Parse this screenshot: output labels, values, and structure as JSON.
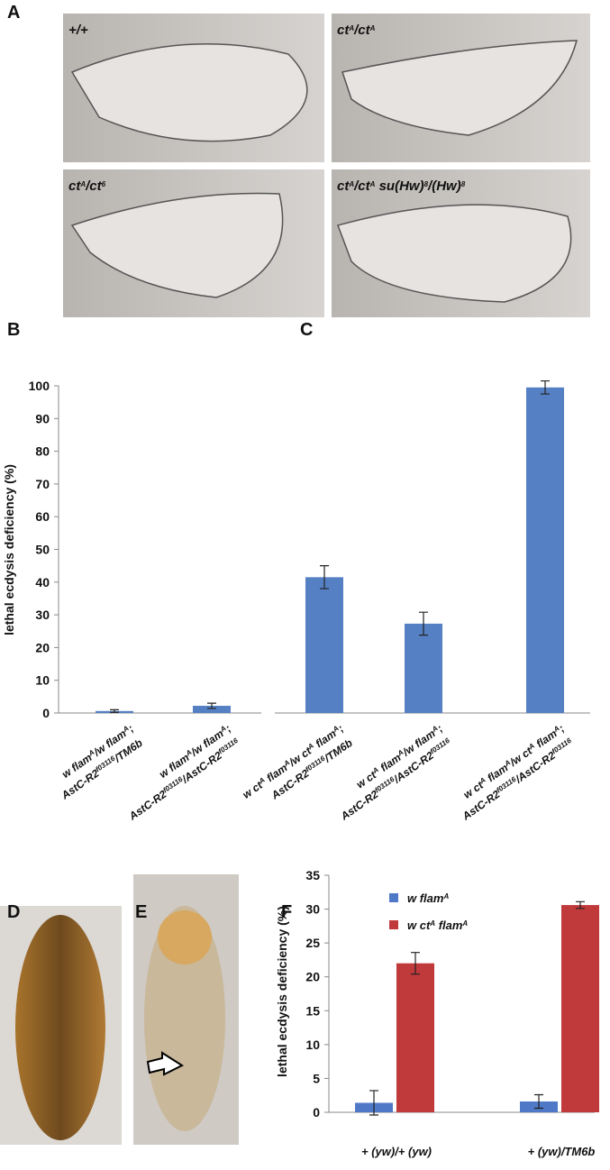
{
  "panel_labels": [
    "A",
    "B",
    "C",
    "D",
    "E",
    "F"
  ],
  "wing_labels": [
    [
      "+/+"
    ],
    [
      "ct",
      {
        "sup": "A"
      },
      "/ct",
      {
        "sup": "A"
      }
    ],
    [
      "ct",
      {
        "sup": "A"
      },
      "/ct",
      {
        "sup": "6"
      }
    ],
    [
      "ct",
      {
        "sup": "A"
      },
      "/ct",
      {
        "sup": "A"
      },
      " su(Hw)",
      {
        "sup": "8"
      },
      "/(Hw)",
      {
        "sup": "8"
      }
    ]
  ],
  "chart_data": [
    {
      "type": "bar",
      "ylabel": "lethal ecdysis deficiency (%)",
      "ylim": [
        0,
        100
      ],
      "yticks": [
        0,
        10,
        20,
        30,
        40,
        50,
        60,
        70,
        80,
        90,
        100
      ],
      "color": "#5580c4",
      "categories": [
        [
          [
            "w flam",
            {
              "sup": "A"
            },
            "/w flam",
            {
              "sup": "A"
            },
            ";"
          ],
          [
            "AstC-R2",
            {
              "sup": "f03116"
            },
            "/TM6b"
          ]
        ],
        [
          [
            "w flam",
            {
              "sup": "A"
            },
            "/w flam",
            {
              "sup": "A"
            },
            ";"
          ],
          [
            "AstC-R2",
            {
              "sup": "f03116"
            },
            "/AstC-R2",
            {
              "sup": "f03116"
            }
          ]
        ]
      ],
      "values": [
        0.6,
        2.2
      ],
      "errors": [
        0.4,
        0.8
      ]
    },
    {
      "type": "bar",
      "ylim": [
        0,
        100
      ],
      "color": "#5580c4",
      "categories": [
        [
          [
            "w ct",
            {
              "sup": "A"
            },
            " flam",
            {
              "sup": "A"
            },
            "/w ct",
            {
              "sup": "A"
            },
            " flam",
            {
              "sup": "A"
            },
            ";"
          ],
          [
            "AstC-R2",
            {
              "sup": "f03116"
            },
            "/TM6b"
          ]
        ],
        [
          [
            "w ct",
            {
              "sup": "A"
            },
            " flam",
            {
              "sup": "A"
            },
            "/w flam",
            {
              "sup": "A"
            },
            ";"
          ],
          [
            "AstC-R2",
            {
              "sup": "f03116"
            },
            "/AstC-R2",
            {
              "sup": "f03116"
            }
          ]
        ],
        [
          [
            "w ct",
            {
              "sup": "A"
            },
            " flam",
            {
              "sup": "A"
            },
            "/w ct",
            {
              "sup": "A"
            },
            " flam",
            {
              "sup": "A"
            },
            ";"
          ],
          [
            "AstC-R2",
            {
              "sup": "f03116"
            },
            "/AstC-R2",
            {
              "sup": "f03116"
            }
          ]
        ]
      ],
      "values": [
        41.5,
        27.3,
        99.5
      ],
      "errors": [
        3.5,
        3.5,
        2.0
      ]
    },
    {
      "type": "grouped_bar",
      "ylabel": "lethal ecdysis deficiency (%)",
      "ylim": [
        0,
        35
      ],
      "yticks": [
        0,
        5,
        10,
        15,
        20,
        25,
        30,
        35
      ],
      "categories": [
        "+ (yw)/+ (yw)",
        "+ (yw)/TM6b"
      ],
      "series": [
        {
          "name": [
            "w flam",
            {
              "sup": "A"
            }
          ],
          "color": "#4f78c6",
          "values": [
            1.4,
            1.6
          ],
          "errors": [
            1.8,
            1.0
          ]
        },
        {
          "name": [
            "w ct",
            {
              "sup": "A"
            },
            " flam",
            {
              "sup": "A"
            }
          ],
          "color": "#c0393b",
          "values": [
            22.0,
            30.6
          ],
          "errors": [
            1.6,
            0.5
          ]
        }
      ]
    }
  ]
}
